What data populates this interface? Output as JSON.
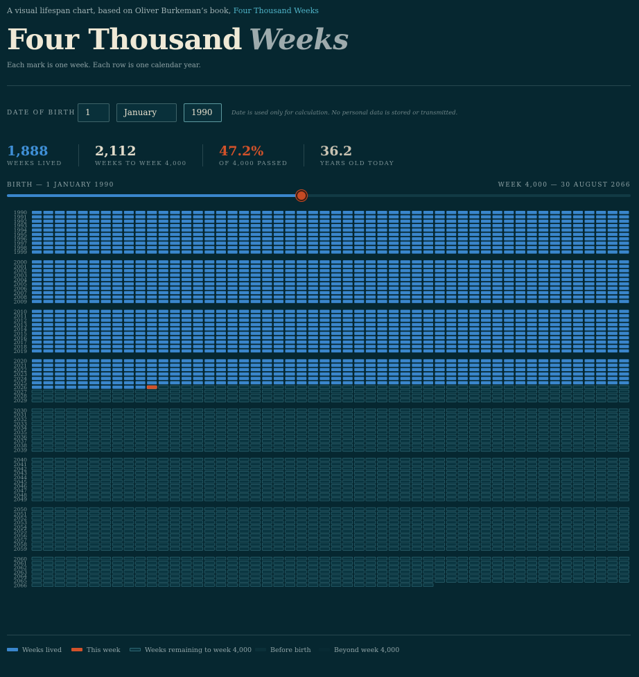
{
  "intro": {
    "text": "A visual lifespan chart, based on Oliver Burkeman’s book,",
    "link": "Four Thousand Weeks"
  },
  "title": {
    "main": "Four Thousand",
    "emphasis": "Weeks"
  },
  "subtitle": "Each mark is one week. Each row is one calendar year.",
  "dob": {
    "label": "DATE OF BIRTH",
    "day": "1",
    "month": "January",
    "year": "1990",
    "note": "Date is used only for calculation. No personal data is stored or transmitted."
  },
  "stats": [
    {
      "value": "1,888",
      "label": "WEEKS LIVED",
      "color": "#3f8fd6"
    },
    {
      "value": "2,112",
      "label": "WEEKS TO WEEK 4,000",
      "color": "#e2dccb"
    },
    {
      "value": "47.2%",
      "label": "OF 4,000 PASSED",
      "color": "#d2522a"
    },
    {
      "value": "36.2",
      "label": "YEARS OLD TODAY",
      "color": "#c8c2b2"
    }
  ],
  "timeline": {
    "start_label": "BIRTH — 1 JANUARY 1990",
    "end_label": "WEEK 4,000 — 30 AUGUST 2066",
    "progress": 0.472
  },
  "grid": {
    "start_year": 1990,
    "end_year": 2066,
    "weeks_per_row": 52,
    "lived_through_year": 2025,
    "current_year": 2026,
    "current_week_index": 10,
    "last_row_weeks": 35,
    "row_labels": [
      "1990",
      "1991",
      "1992",
      "1993",
      "1994",
      "1995",
      "1996",
      "1997",
      "1998",
      "1999",
      "2000",
      "2001",
      "2002",
      "2003",
      "2004",
      "2005",
      "2006",
      "2007",
      "2008",
      "2009",
      "2010",
      "2011",
      "2012",
      "2013",
      "2014",
      "2015",
      "2016",
      "2017",
      "2018",
      "2019",
      "2020",
      "2021",
      "2022",
      "2023",
      "2024",
      "2025",
      "2026",
      "2027",
      "2028",
      "2029",
      "2030",
      "2031",
      "2032",
      "2033",
      "2034",
      "2035",
      "2036",
      "2037",
      "2038",
      "2039",
      "2040",
      "2041",
      "2042",
      "2043",
      "2044",
      "2045",
      "2046",
      "2047",
      "2048",
      "2049",
      "2050",
      "2051",
      "2052",
      "2053",
      "2054",
      "2055",
      "2056",
      "2057",
      "2058",
      "2059",
      "2060",
      "2061",
      "2062",
      "2063",
      "2064",
      "2065",
      "2066"
    ]
  },
  "colors": {
    "lived": "#3a86cc",
    "current": "#d2522a",
    "remaining_stroke": "#2e6672",
    "remaining_fill": "#0a3540",
    "before_birth": "#0b3039",
    "beyond": "#082a33"
  },
  "legend": [
    {
      "label": "Weeks lived",
      "key": "lived"
    },
    {
      "label": "This week",
      "key": "current"
    },
    {
      "label": "Weeks remaining to week 4,000",
      "key": "remaining"
    },
    {
      "label": "Before birth",
      "key": "before"
    },
    {
      "label": "Beyond week 4,000",
      "key": "beyond"
    }
  ]
}
